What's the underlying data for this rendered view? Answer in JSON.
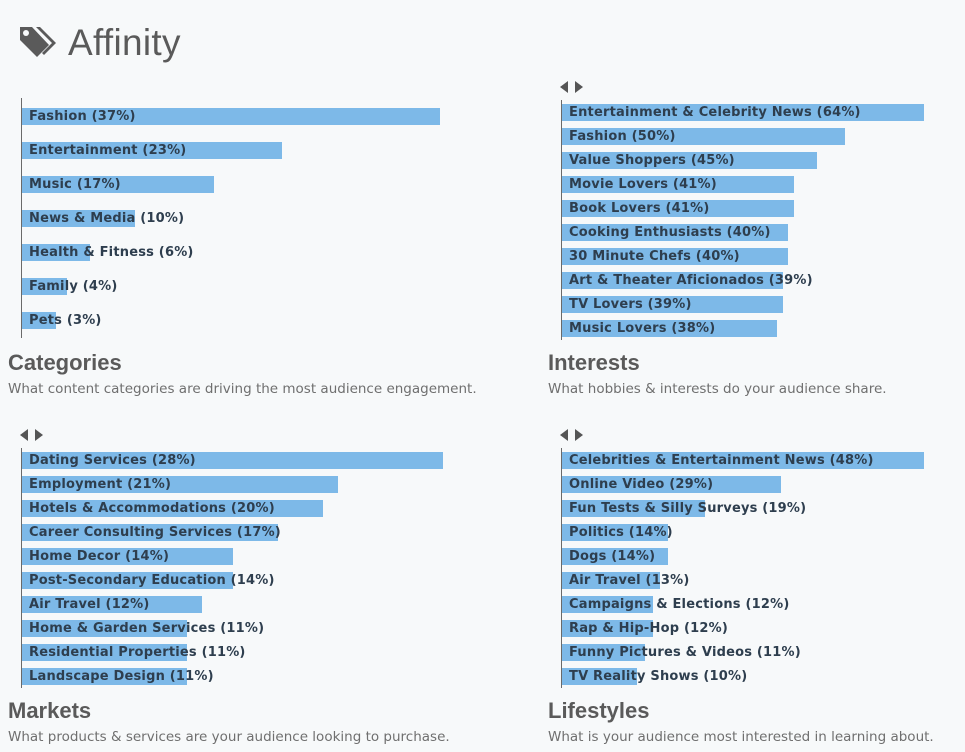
{
  "header": {
    "title": "Affinity",
    "icon": "tag-icon"
  },
  "colors": {
    "bar": "#7db9e8",
    "label": "#2e3e4e",
    "title": "#5a5a5a"
  },
  "chart_data": [
    {
      "type": "bar",
      "orientation": "horizontal",
      "title": "Categories",
      "subtitle": "What content categories are driving the most audience engagement.",
      "categories": [
        "Fashion (37%)",
        "Entertainment (23%)",
        "Music (17%)",
        "News & Media (10%)",
        "Health & Fitness (6%)",
        "Family (4%)",
        "Pets (3%)"
      ],
      "values": [
        37,
        23,
        17,
        10,
        6,
        4,
        3
      ],
      "xlim": [
        0,
        37
      ]
    },
    {
      "type": "bar",
      "orientation": "horizontal",
      "title": "Interests",
      "subtitle": "What hobbies & interests do your audience share.",
      "categories": [
        "Entertainment & Celebrity News (64%)",
        "Fashion (50%)",
        "Value Shoppers (45%)",
        "Movie Lovers (41%)",
        "Book Lovers (41%)",
        "Cooking Enthusiasts (40%)",
        "30 Minute Chefs (40%)",
        "Art & Theater Aficionados (39%)",
        "TV Lovers (39%)",
        "Music Lovers (38%)"
      ],
      "values": [
        64,
        50,
        45,
        41,
        41,
        40,
        40,
        39,
        39,
        38
      ],
      "xlim": [
        0,
        64
      ]
    },
    {
      "type": "bar",
      "orientation": "horizontal",
      "title": "Markets",
      "subtitle": "What products & services are your audience looking to purchase.",
      "categories": [
        "Dating Services (28%)",
        "Employment (21%)",
        "Hotels & Accommodations (20%)",
        "Career Consulting Services (17%)",
        "Home Decor (14%)",
        "Post-Secondary Education (14%)",
        "Air Travel (12%)",
        "Home & Garden Services (11%)",
        "Residential Properties (11%)",
        "Landscape Design (11%)"
      ],
      "values": [
        28,
        21,
        20,
        17,
        14,
        14,
        12,
        11,
        11,
        11
      ],
      "xlim": [
        0,
        28
      ]
    },
    {
      "type": "bar",
      "orientation": "horizontal",
      "title": "Lifestyles",
      "subtitle": "What is your audience most interested in learning about.",
      "categories": [
        "Celebrities & Entertainment News (48%)",
        "Online Video (29%)",
        "Fun Tests & Silly Surveys (19%)",
        "Politics (14%)",
        "Dogs (14%)",
        "Air Travel (13%)",
        "Campaigns & Elections (12%)",
        "Rap & Hip-Hop (12%)",
        "Funny Pictures & Videos (11%)",
        "TV Reality Shows (10%)"
      ],
      "values": [
        48,
        29,
        19,
        14,
        14,
        13,
        12,
        12,
        11,
        10
      ],
      "xlim": [
        0,
        48
      ]
    }
  ]
}
